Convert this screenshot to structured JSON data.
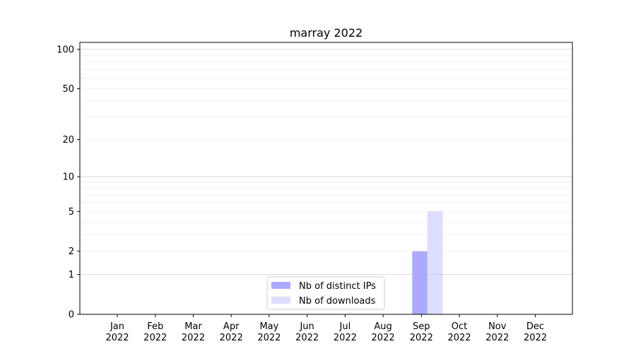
{
  "chart_data": {
    "type": "bar",
    "title": "marray 2022",
    "xlabel": "",
    "ylabel": "",
    "yscale": "symlog (log10(1+y))",
    "ylim": [
      0,
      113
    ],
    "yticks": [
      0,
      1,
      2,
      5,
      10,
      20,
      50,
      100
    ],
    "ytick_labels": [
      "0",
      "1",
      "2",
      "5",
      "10",
      "20",
      "50",
      "100"
    ],
    "grid": true,
    "legend_position": "lower-center",
    "categories": [
      [
        "Jan",
        "2022"
      ],
      [
        "Feb",
        "2022"
      ],
      [
        "Mar",
        "2022"
      ],
      [
        "Apr",
        "2022"
      ],
      [
        "May",
        "2022"
      ],
      [
        "Jun",
        "2022"
      ],
      [
        "Jul",
        "2022"
      ],
      [
        "Aug",
        "2022"
      ],
      [
        "Sep",
        "2022"
      ],
      [
        "Oct",
        "2022"
      ],
      [
        "Nov",
        "2022"
      ],
      [
        "Dec",
        "2022"
      ]
    ],
    "series": [
      {
        "name": "Nb of distinct IPs",
        "color": "#aaaaff",
        "values": [
          0,
          0,
          0,
          0,
          0,
          0,
          0,
          0,
          2,
          0,
          0,
          0
        ]
      },
      {
        "name": "Nb of downloads",
        "color": "#ddddff",
        "values": [
          0,
          0,
          0,
          0,
          0,
          0,
          0,
          0,
          5,
          0,
          0,
          0
        ]
      }
    ]
  }
}
